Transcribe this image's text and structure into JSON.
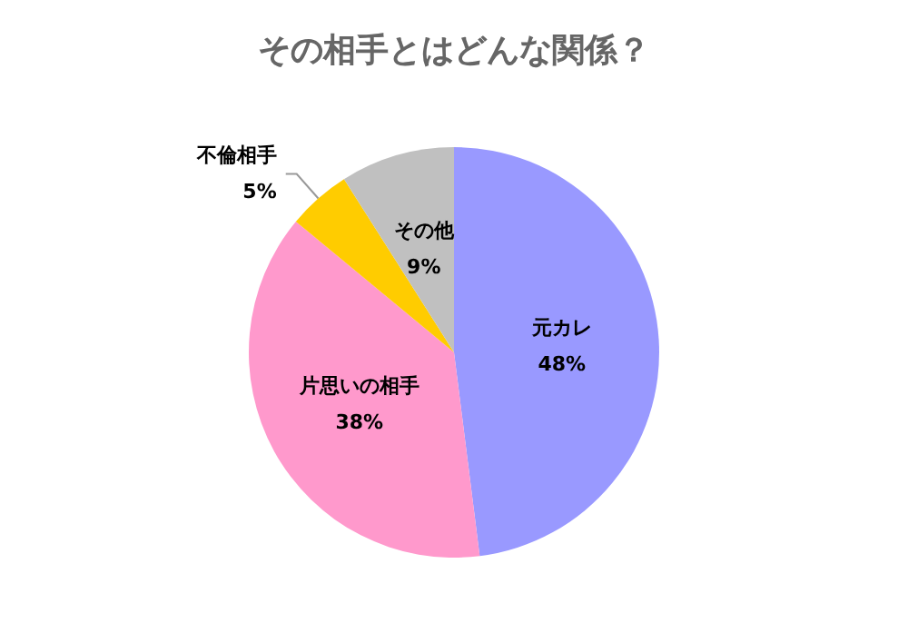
{
  "chart_data": {
    "type": "pie",
    "title": "その相手とはどんな関係？",
    "categories": [
      "元カレ",
      "片思いの相手",
      "不倫相手",
      "その他"
    ],
    "values": [
      48,
      38,
      5,
      9
    ],
    "value_labels": [
      "48%",
      "38%",
      "5%",
      "9%"
    ],
    "colors": [
      "#9999ff",
      "#ff99cc",
      "#ffcc00",
      "#c0c0c0"
    ]
  }
}
